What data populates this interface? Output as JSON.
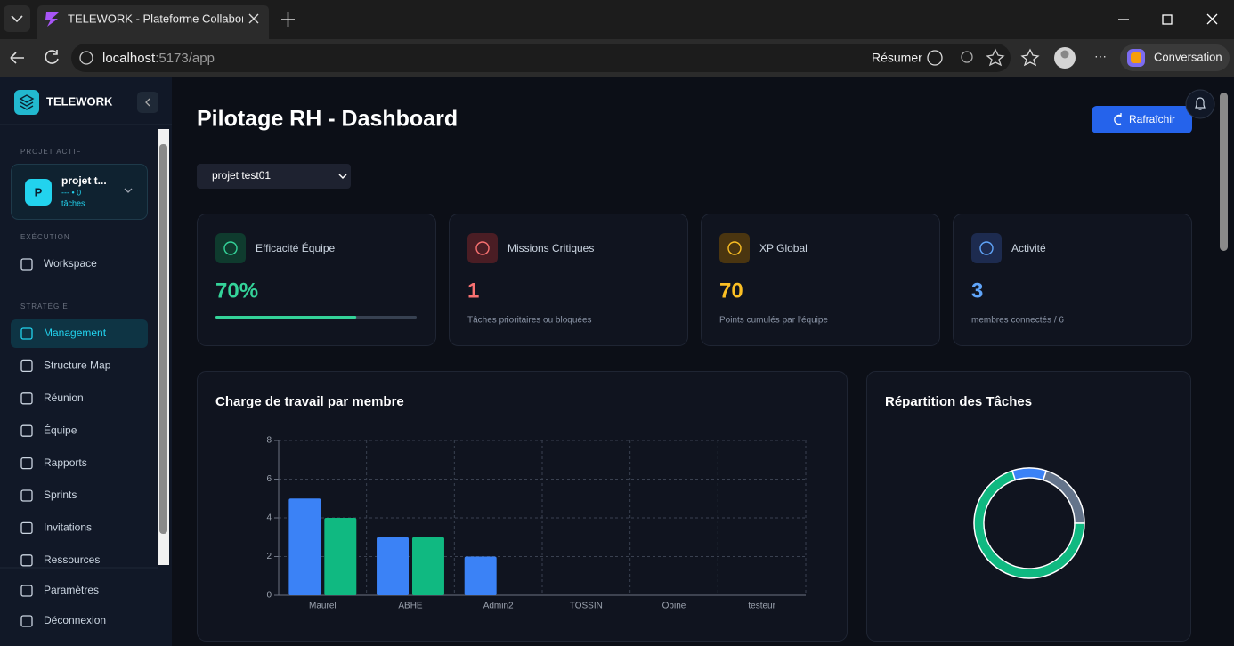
{
  "browser": {
    "tab_title": "TELEWORK - Plateforme Collabora",
    "url_host": "localhost",
    "url_path": ":5173/app",
    "summarize": "Résumer",
    "copilot": "Conversation"
  },
  "sidebar": {
    "brand": "TELEWORK",
    "project_section": "PROJET ACTIF",
    "project_initial": "P",
    "project_name": "projet t...",
    "project_meta": "--- • 0",
    "project_tasks": "tâches",
    "sections": [
      {
        "label": "EXÉCUTION",
        "items": [
          "Workspace"
        ]
      },
      {
        "label": "STRATÉGIE",
        "items": [
          "Management",
          "Structure Map",
          "Réunion",
          "Équipe",
          "Rapports",
          "Sprints",
          "Invitations",
          "Ressources"
        ]
      }
    ],
    "active_item": "Management",
    "footer_items": [
      "Paramètres",
      "Déconnexion"
    ]
  },
  "header": {
    "title": "Pilotage RH - Dashboard",
    "refresh": "Rafraîchir",
    "project_select": "projet test01"
  },
  "stats_cards": [
    {
      "title": "Efficacité Équipe",
      "value": 70,
      "value_label": "70%",
      "color": "#34d399"
    },
    {
      "title": "Missions Critiques",
      "value": 1,
      "subtitle": "Tâches prioritaires ou bloquées",
      "color": "#f87171"
    },
    {
      "title": "XP Global",
      "value": 70,
      "subtitle": "Points cumulés par l'équipe",
      "color": "#fbbf24"
    },
    {
      "title": "Activité",
      "value": 3,
      "subtitle": "membres connectés / 6",
      "color": "#60a5fa"
    }
  ],
  "chart_data": [
    {
      "type": "bar",
      "title": "Charge de travail par membre",
      "categories": [
        "Maurel",
        "ABHE",
        "Admin2",
        "TOSSIN",
        "Obine",
        "testeur"
      ],
      "series": [
        {
          "color": "#3b82f6",
          "values": [
            5,
            3,
            2,
            0,
            0,
            0
          ]
        },
        {
          "color": "#10b981",
          "values": [
            4,
            3,
            0,
            0,
            0,
            0
          ]
        }
      ],
      "ylim": [
        0,
        8
      ],
      "yticks": [
        0,
        2,
        4,
        6,
        8
      ],
      "grid": true
    },
    {
      "type": "donut",
      "title": "Répartition des Tâches",
      "values": [
        1,
        2,
        7
      ],
      "colors": [
        "#3b82f6",
        "#64748b",
        "#10b981"
      ]
    }
  ]
}
